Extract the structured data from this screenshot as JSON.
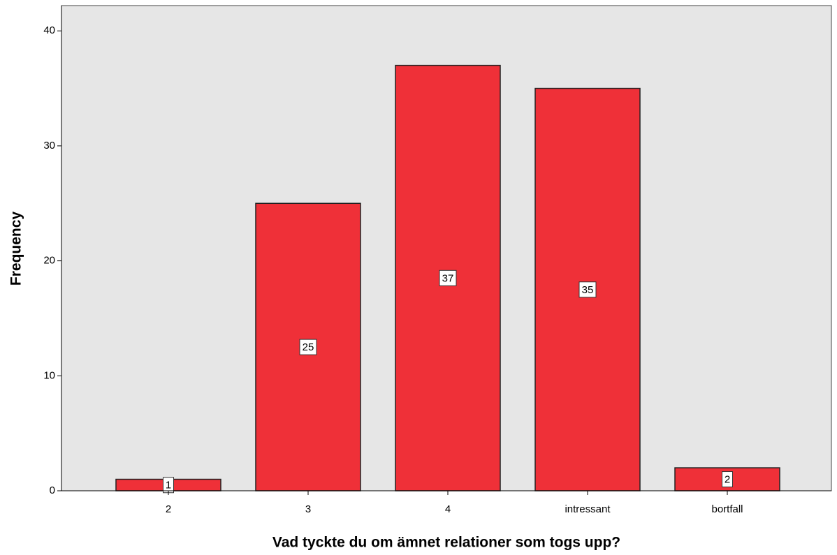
{
  "chart_data": {
    "type": "bar",
    "xlabel": "Vad tyckte du om ämnet relationer som togs upp?",
    "ylabel": "Frequency",
    "categories": [
      "2",
      "3",
      "4",
      "intressant",
      "bortfall"
    ],
    "values": [
      1,
      25,
      37,
      35,
      2
    ],
    "color": "#ef3038",
    "ylim": [
      0,
      42.2
    ],
    "yticks": [
      0,
      10,
      20,
      30,
      40
    ]
  }
}
